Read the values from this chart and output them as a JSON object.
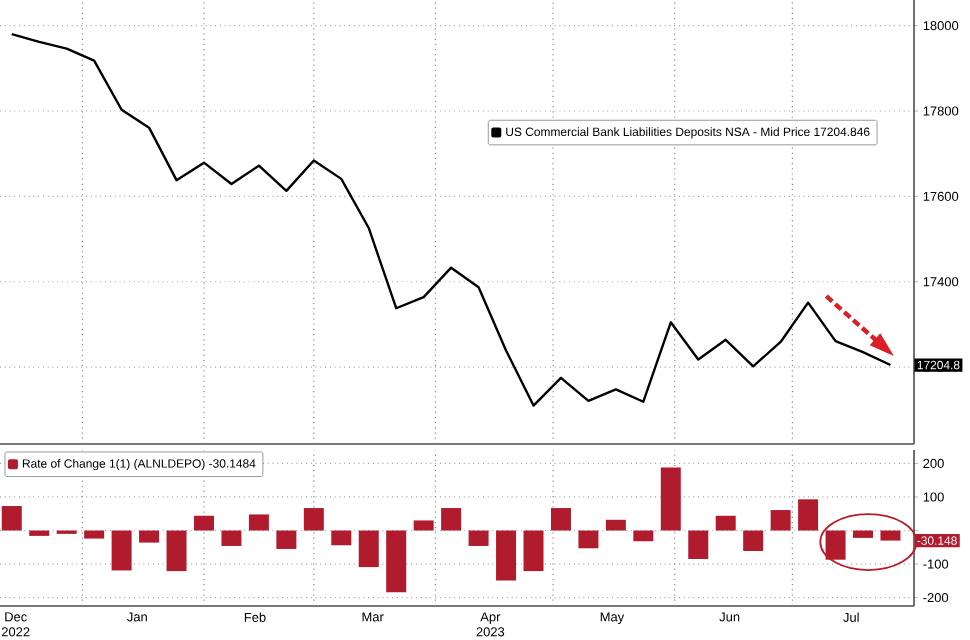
{
  "chart_data": [
    {
      "type": "line",
      "xlim": [
        "2022-12-11",
        "2023-08-01"
      ],
      "ylim": [
        17020,
        18060
      ],
      "yticks": [
        17200,
        17400,
        17600,
        17800,
        18000
      ],
      "xticks": [
        {
          "value": "2023-01-01",
          "label": null
        },
        {
          "value": "2023-02-01",
          "label": null
        },
        {
          "value": "2023-03-01",
          "label": null
        },
        {
          "value": "2023-04-01",
          "label": null
        },
        {
          "value": "2023-05-01",
          "label": null
        },
        {
          "value": "2023-06-01",
          "label": null
        },
        {
          "value": "2023-07-01",
          "label": null
        }
      ],
      "tick_labels": "y",
      "grid": true,
      "legend": "top right",
      "series": [
        {
          "name": "US Commercial Bank Liabilities Deposits NSA - Mid Price 17204.846",
          "color": "#000000",
          "x": [
            "2022-12-14",
            "2022-12-21",
            "2022-12-28",
            "2023-01-04",
            "2023-01-11",
            "2023-01-18",
            "2023-01-25",
            "2023-02-01",
            "2023-02-08",
            "2023-02-15",
            "2023-02-22",
            "2023-03-01",
            "2023-03-08",
            "2023-03-15",
            "2023-03-22",
            "2023-03-29",
            "2023-04-05",
            "2023-04-12",
            "2023-04-19",
            "2023-04-26",
            "2023-05-03",
            "2023-05-10",
            "2023-05-17",
            "2023-05-24",
            "2023-05-31",
            "2023-06-07",
            "2023-06-14",
            "2023-06-21",
            "2023-06-28",
            "2023-07-05",
            "2023-07-12",
            "2023-07-19",
            "2023-07-26"
          ],
          "values": [
            17980,
            17962,
            17946,
            17918,
            17803,
            17761,
            17638,
            17679,
            17629,
            17672,
            17613,
            17684,
            17641,
            17526,
            17338,
            17364,
            17433,
            17387,
            17239,
            17110,
            17175,
            17121,
            17148,
            17119,
            17305,
            17218,
            17264,
            17202,
            17259,
            17351,
            17261,
            17235,
            17205
          ]
        }
      ],
      "annotations": [
        "17204.8"
      ]
    },
    {
      "type": "bar",
      "xlim": [
        "2022-12-11",
        "2023-08-01"
      ],
      "ylim": [
        -225,
        240
      ],
      "yticks": [
        -200,
        -100,
        {
          "value": 0,
          "label": null
        },
        100,
        200
      ],
      "xticks": [
        {
          "value": "2022-12-15",
          "label": "Dec 2022"
        },
        {
          "value": "2023-01-01",
          "label": null
        },
        {
          "value": "2023-01-15",
          "label": "Jan"
        },
        {
          "value": "2023-02-01",
          "label": null
        },
        {
          "value": "2023-02-14",
          "label": "Feb"
        },
        {
          "value": "2023-03-01",
          "label": null
        },
        {
          "value": "2023-03-16",
          "label": "Mar"
        },
        {
          "value": "2023-04-01",
          "label": null
        },
        {
          "value": "2023-04-15",
          "label": "Apr 2023"
        },
        {
          "value": "2023-05-01",
          "label": null
        },
        {
          "value": "2023-05-16",
          "label": "May"
        },
        {
          "value": "2023-06-01",
          "label": null
        },
        {
          "value": "2023-06-15",
          "label": "Jun"
        },
        {
          "value": "2023-07-01",
          "label": null
        },
        {
          "value": "2023-07-16",
          "label": "Jul"
        }
      ],
      "grid": true,
      "legend": "top left",
      "series": [
        {
          "name": "Rate of Change 1(1) (ALNLDEPO) -30.1484",
          "color": "#b01c2e",
          "x": [
            "2022-12-14",
            "2022-12-21",
            "2022-12-28",
            "2023-01-04",
            "2023-01-11",
            "2023-01-18",
            "2023-01-25",
            "2023-02-01",
            "2023-02-08",
            "2023-02-15",
            "2023-02-22",
            "2023-03-01",
            "2023-03-08",
            "2023-03-15",
            "2023-03-22",
            "2023-03-29",
            "2023-04-05",
            "2023-04-12",
            "2023-04-19",
            "2023-04-26",
            "2023-05-03",
            "2023-05-10",
            "2023-05-17",
            "2023-05-24",
            "2023-05-31",
            "2023-06-07",
            "2023-06-14",
            "2023-06-21",
            "2023-06-28",
            "2023-07-05",
            "2023-07-12",
            "2023-07-19",
            "2023-07-26"
          ],
          "values": [
            73,
            -16,
            -10,
            -24,
            -119,
            -36,
            -121,
            44,
            -46,
            48,
            -55,
            67,
            -44,
            -109,
            -184,
            30,
            67,
            -46,
            -149,
            -121,
            67,
            -53,
            32,
            -32,
            188,
            -85,
            44,
            -61,
            61,
            93,
            -87,
            -22,
            -30
          ]
        }
      ],
      "annotations": [
        "-30.148"
      ]
    }
  ]
}
